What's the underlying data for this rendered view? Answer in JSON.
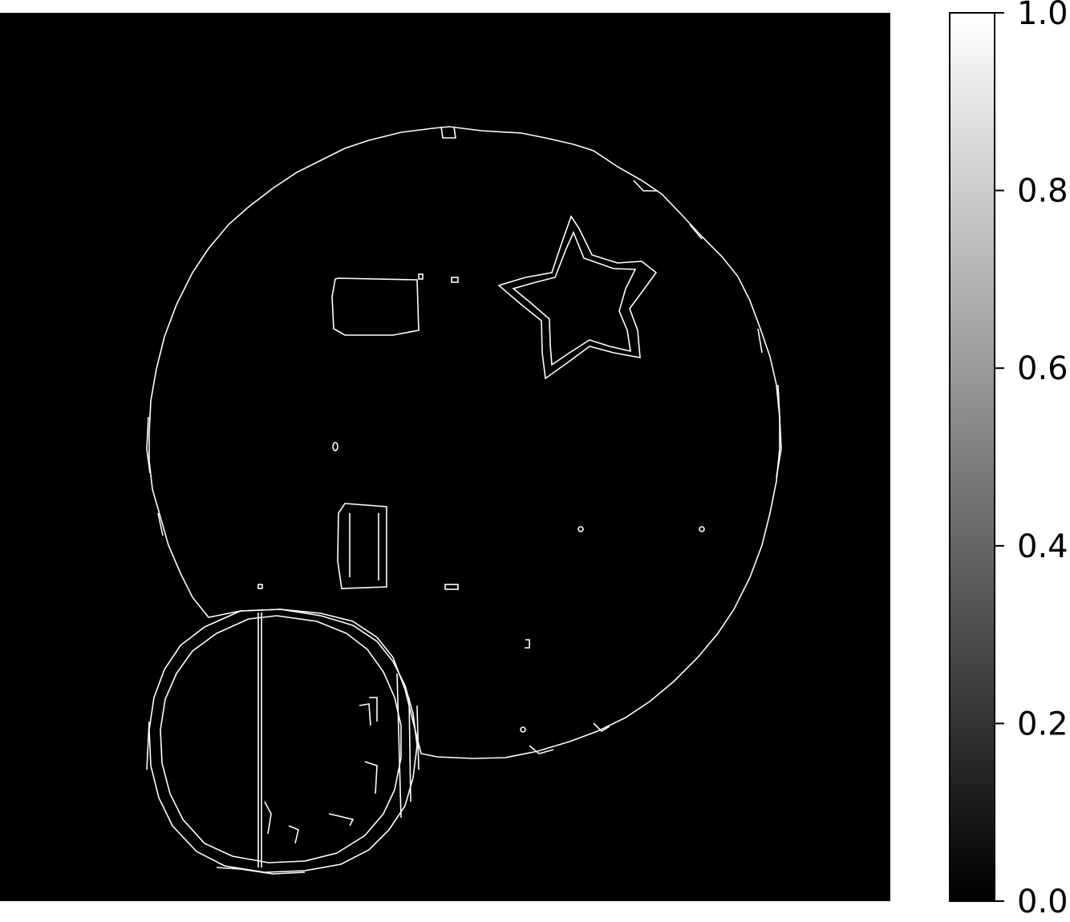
{
  "chart_data": {
    "type": "heatmap",
    "title": "",
    "xlabel": "",
    "ylabel": "",
    "image_description_values": "binary edge map (values 0.0 or 1.0)",
    "value_range": [
      0.0,
      1.0
    ],
    "colormap": {
      "name": "gray",
      "low_color": "#000000",
      "high_color": "#ffffff"
    },
    "colorbar": {
      "ticks": [
        0.0,
        0.2,
        0.4,
        0.6,
        0.8,
        1.0
      ],
      "tick_labels": [
        "0.0",
        "0.2",
        "0.4",
        "0.6",
        "0.8",
        "1.0"
      ],
      "placement": "right"
    },
    "axes_visible": false,
    "grid": false
  },
  "colors": {
    "background": "#000000",
    "edge": "#ffffff",
    "axis": "#000000"
  }
}
